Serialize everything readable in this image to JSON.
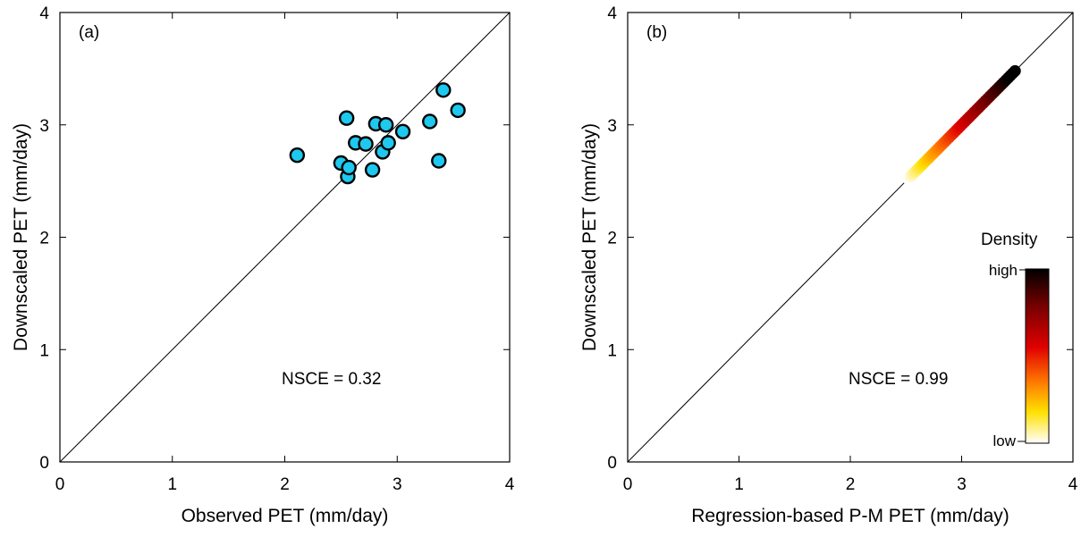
{
  "chart_data": [
    {
      "panel_label": "(a)",
      "type": "scatter",
      "xlabel": "Observed PET (mm/day)",
      "ylabel": "Downscaled PET (mm/day)",
      "xlim": [
        0,
        4
      ],
      "ylim": [
        0,
        4
      ],
      "xticks": [
        "0",
        "1",
        "2",
        "3",
        "4"
      ],
      "yticks": [
        "0",
        "1",
        "2",
        "3",
        "4"
      ],
      "reference_line": "1:1",
      "annotation": "NSCE = 0.32",
      "marker_color": "#1ec8ee",
      "points": [
        {
          "x": 2.11,
          "y": 2.73
        },
        {
          "x": 2.5,
          "y": 2.66
        },
        {
          "x": 2.55,
          "y": 3.06
        },
        {
          "x": 2.56,
          "y": 2.54
        },
        {
          "x": 2.57,
          "y": 2.62
        },
        {
          "x": 2.63,
          "y": 2.84
        },
        {
          "x": 2.72,
          "y": 2.83
        },
        {
          "x": 2.78,
          "y": 2.6
        },
        {
          "x": 2.81,
          "y": 3.01
        },
        {
          "x": 2.87,
          "y": 2.76
        },
        {
          "x": 2.9,
          "y": 3.0
        },
        {
          "x": 2.92,
          "y": 2.84
        },
        {
          "x": 3.05,
          "y": 2.94
        },
        {
          "x": 3.29,
          "y": 3.03
        },
        {
          "x": 3.37,
          "y": 2.68
        },
        {
          "x": 3.41,
          "y": 3.31
        },
        {
          "x": 3.54,
          "y": 3.13
        }
      ]
    },
    {
      "panel_label": "(b)",
      "type": "density-scatter",
      "xlabel": "Regression-based P-M PET (mm/day)",
      "ylabel": "Downscaled PET (mm/day)",
      "xlim": [
        0,
        4
      ],
      "ylim": [
        0,
        4
      ],
      "xticks": [
        "0",
        "1",
        "2",
        "3",
        "4"
      ],
      "yticks": [
        "0",
        "1",
        "2",
        "3",
        "4"
      ],
      "reference_line": "1:1",
      "annotation": "NSCE = 0.99",
      "density_range": {
        "x_start": 2.52,
        "x_end": 3.48
      },
      "colorbar": {
        "title": "Density",
        "high_label": "high",
        "low_label": "low",
        "colors": [
          "#000000",
          "#7a0000",
          "#e00000",
          "#ff7a00",
          "#ffe000",
          "#ffffff"
        ]
      }
    }
  ]
}
